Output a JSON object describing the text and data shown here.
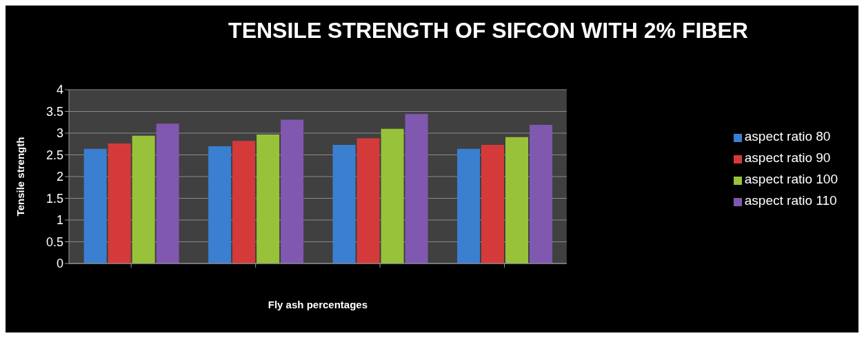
{
  "chart_data": {
    "type": "bar",
    "title": "TENSILE STRENGTH OF SIFCON WITH 2% FIBER",
    "xlabel": "Fly ash percentages",
    "ylabel": "Tensile strength",
    "categories": [
      null,
      null,
      null,
      null
    ],
    "series": [
      {
        "name": "aspect ratio 80",
        "color": "#3a7fd0",
        "values": [
          2.64,
          2.7,
          2.73,
          2.64
        ]
      },
      {
        "name": "aspect ratio 90",
        "color": "#d53a3a",
        "values": [
          2.76,
          2.82,
          2.88,
          2.73
        ]
      },
      {
        "name": "aspect ratio 100",
        "color": "#98c23a",
        "values": [
          2.94,
          2.97,
          3.1,
          2.91
        ]
      },
      {
        "name": "aspect ratio 110",
        "color": "#8058b0",
        "values": [
          3.22,
          3.31,
          3.44,
          3.19
        ]
      }
    ],
    "ylim": [
      0,
      4
    ],
    "yticks": [
      0,
      0.5,
      1,
      1.5,
      2,
      2.5,
      3,
      3.5,
      4
    ],
    "grid": "y",
    "legend": "right"
  }
}
